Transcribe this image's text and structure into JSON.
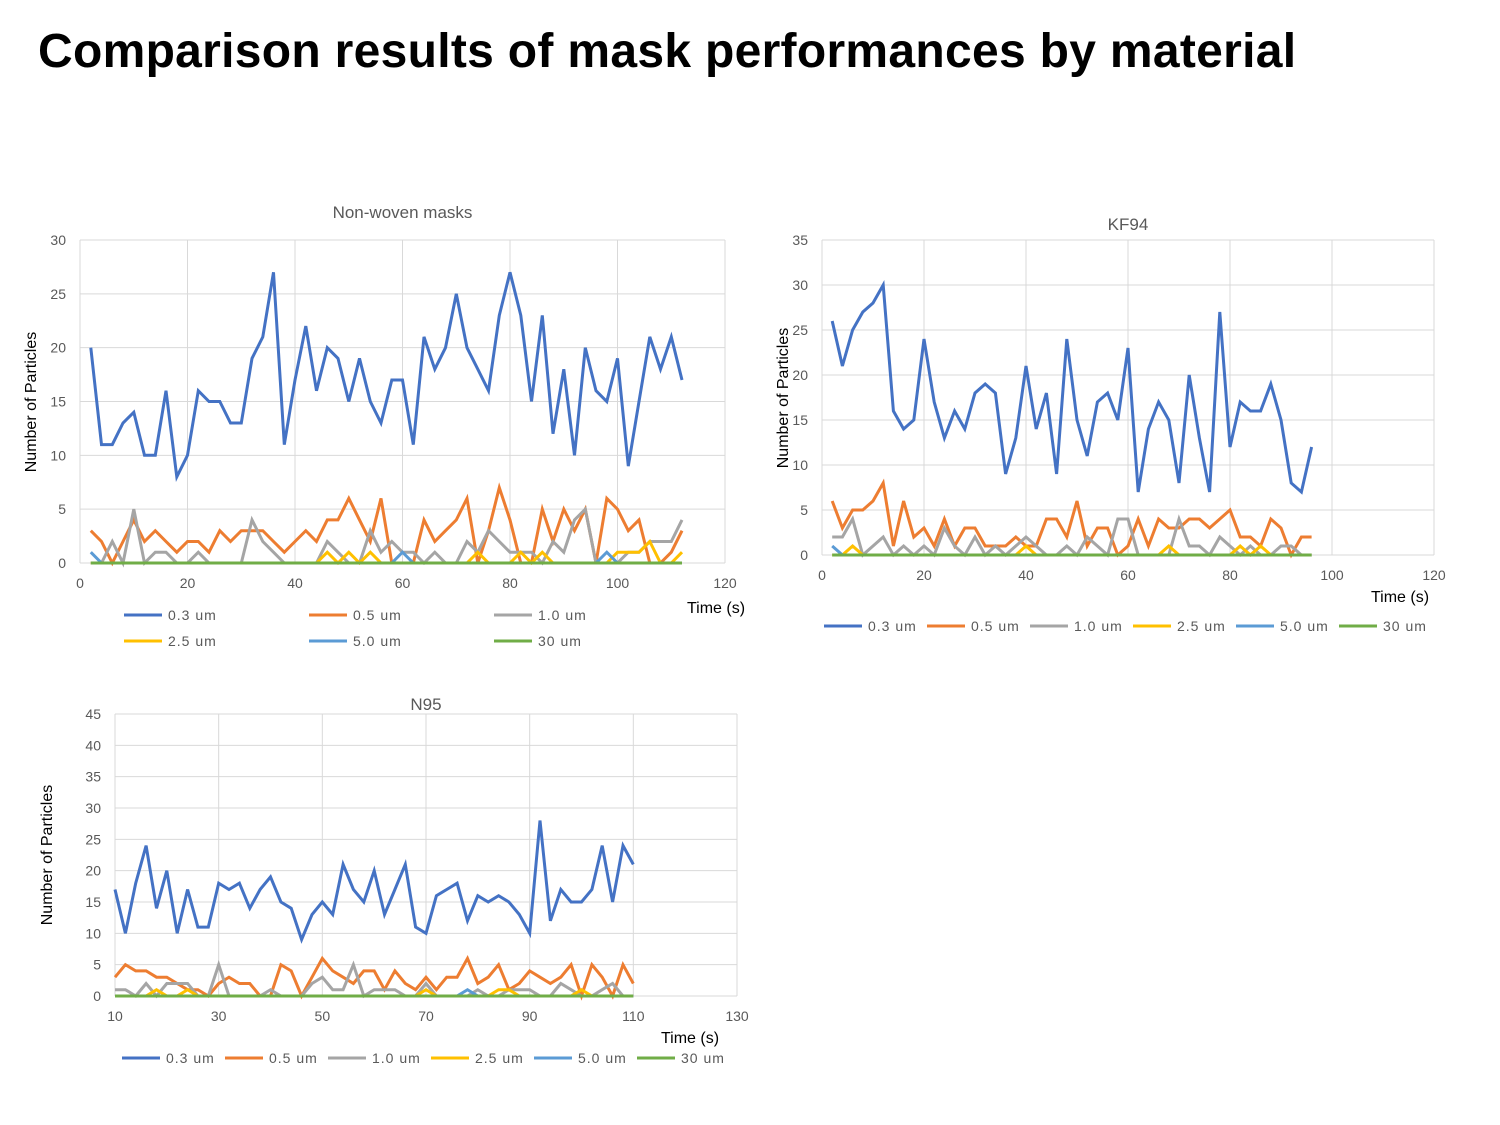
{
  "slide": {
    "title": "Comparison results of mask performances by material"
  },
  "colors": {
    "0.3 um": "#4472C4",
    "0.5 um": "#ED7D31",
    "1.0 um": "#A5A5A5",
    "2.5 um": "#FFC000",
    "5.0 um": "#5B9BD5",
    "30 um": "#70AD47"
  },
  "chart_data": [
    {
      "type": "line",
      "title": "Non-woven masks",
      "xlabel": "Time (s)",
      "ylabel": "Number of Particles",
      "xlim": [
        0,
        120
      ],
      "ylim": [
        0,
        30
      ],
      "xticks": [
        0,
        20,
        40,
        60,
        80,
        100,
        120
      ],
      "yticks": [
        0,
        5,
        10,
        15,
        20,
        25,
        30
      ],
      "grid": true,
      "legend": "bottom",
      "x": [
        2,
        4,
        6,
        8,
        10,
        12,
        14,
        16,
        18,
        20,
        22,
        24,
        26,
        28,
        30,
        32,
        34,
        36,
        38,
        40,
        42,
        44,
        46,
        48,
        50,
        52,
        54,
        56,
        58,
        60,
        62,
        64,
        66,
        68,
        70,
        72,
        74,
        76,
        78,
        80,
        82,
        84,
        86,
        88,
        90,
        92,
        94,
        96,
        98,
        100,
        102,
        104,
        106,
        108,
        110,
        112
      ],
      "series": [
        {
          "name": "0.3 um",
          "values": [
            20,
            11,
            11,
            13,
            14,
            10,
            10,
            16,
            8,
            10,
            16,
            15,
            15,
            13,
            13,
            19,
            21,
            27,
            11,
            17,
            22,
            16,
            20,
            19,
            15,
            19,
            15,
            13,
            17,
            17,
            11,
            21,
            18,
            20,
            25,
            20,
            18,
            16,
            23,
            27,
            23,
            15,
            23,
            12,
            18,
            10,
            20,
            16,
            15,
            19,
            9,
            15,
            21,
            18,
            21,
            17
          ]
        },
        {
          "name": "0.5 um",
          "values": [
            3,
            2,
            0,
            2,
            4,
            2,
            3,
            2,
            1,
            2,
            2,
            1,
            3,
            2,
            3,
            3,
            3,
            2,
            1,
            2,
            3,
            2,
            4,
            4,
            6,
            4,
            2,
            6,
            0,
            0,
            0,
            4,
            2,
            3,
            4,
            6,
            0,
            3,
            7,
            4,
            0,
            0,
            5,
            2,
            5,
            3,
            5,
            0,
            6,
            5,
            3,
            4,
            0,
            0,
            1,
            3
          ]
        },
        {
          "name": "1.0 um",
          "values": [
            0,
            0,
            2,
            0,
            5,
            0,
            1,
            1,
            0,
            0,
            1,
            0,
            0,
            0,
            0,
            4,
            2,
            1,
            0,
            0,
            0,
            0,
            2,
            1,
            0,
            0,
            3,
            1,
            2,
            1,
            1,
            0,
            1,
            0,
            0,
            2,
            1,
            3,
            2,
            1,
            1,
            1,
            0,
            2,
            1,
            4,
            5,
            0,
            0,
            0,
            1,
            1,
            2,
            2,
            2,
            4
          ]
        },
        {
          "name": "2.5 um",
          "values": [
            0,
            0,
            0,
            0,
            0,
            0,
            0,
            0,
            0,
            0,
            0,
            0,
            0,
            0,
            0,
            0,
            0,
            0,
            0,
            0,
            0,
            0,
            1,
            0,
            1,
            0,
            1,
            0,
            0,
            0,
            0,
            0,
            0,
            0,
            0,
            0,
            1,
            0,
            0,
            0,
            1,
            0,
            1,
            0,
            0,
            0,
            0,
            0,
            0,
            1,
            1,
            1,
            2,
            0,
            0,
            1
          ]
        },
        {
          "name": "5.0 um",
          "values": [
            1,
            0,
            0,
            0,
            0,
            0,
            0,
            0,
            0,
            0,
            0,
            0,
            0,
            0,
            0,
            0,
            0,
            0,
            0,
            0,
            0,
            0,
            0,
            0,
            0,
            0,
            0,
            0,
            0,
            1,
            0,
            0,
            0,
            0,
            0,
            0,
            0,
            0,
            0,
            0,
            0,
            0,
            0,
            0,
            0,
            0,
            0,
            0,
            1,
            0,
            0,
            0,
            0,
            0,
            0,
            0
          ]
        },
        {
          "name": "30 um",
          "values": [
            0,
            0,
            0,
            0,
            0,
            0,
            0,
            0,
            0,
            0,
            0,
            0,
            0,
            0,
            0,
            0,
            0,
            0,
            0,
            0,
            0,
            0,
            0,
            0,
            0,
            0,
            0,
            0,
            0,
            0,
            0,
            0,
            0,
            0,
            0,
            0,
            0,
            0,
            0,
            0,
            0,
            0,
            0,
            0,
            0,
            0,
            0,
            0,
            0,
            0,
            0,
            0,
            0,
            0,
            0,
            0
          ]
        }
      ]
    },
    {
      "type": "line",
      "title": "KF94",
      "xlabel": "Time (s)",
      "ylabel": "Number of Particles",
      "xlim": [
        0,
        120
      ],
      "ylim": [
        0,
        35
      ],
      "xticks": [
        0,
        20,
        40,
        60,
        80,
        100,
        120
      ],
      "yticks": [
        0,
        5,
        10,
        15,
        20,
        25,
        30,
        35
      ],
      "grid": true,
      "legend": "bottom",
      "x": [
        2,
        4,
        6,
        8,
        10,
        12,
        14,
        16,
        18,
        20,
        22,
        24,
        26,
        28,
        30,
        32,
        34,
        36,
        38,
        40,
        42,
        44,
        46,
        48,
        50,
        52,
        54,
        56,
        58,
        60,
        62,
        64,
        66,
        68,
        70,
        72,
        74,
        76,
        78,
        80,
        82,
        84,
        86,
        88,
        90,
        92,
        94,
        96
      ],
      "series": [
        {
          "name": "0.3 um",
          "values": [
            26,
            21,
            25,
            27,
            28,
            30,
            16,
            14,
            15,
            24,
            17,
            13,
            16,
            14,
            18,
            19,
            18,
            9,
            13,
            21,
            14,
            18,
            9,
            24,
            15,
            11,
            17,
            18,
            15,
            23,
            7,
            14,
            17,
            15,
            8,
            20,
            13,
            7,
            27,
            12,
            17,
            16,
            16,
            19,
            15,
            8,
            7,
            12
          ]
        },
        {
          "name": "0.5 um",
          "values": [
            6,
            3,
            5,
            5,
            6,
            8,
            1,
            6,
            2,
            3,
            1,
            4,
            1,
            3,
            3,
            1,
            1,
            1,
            2,
            1,
            1,
            4,
            4,
            2,
            6,
            1,
            3,
            3,
            0,
            1,
            4,
            1,
            4,
            3,
            3,
            4,
            4,
            3,
            4,
            5,
            2,
            2,
            1,
            4,
            3,
            0,
            2,
            2
          ]
        },
        {
          "name": "1.0 um",
          "values": [
            2,
            2,
            4,
            0,
            1,
            2,
            0,
            1,
            0,
            1,
            0,
            3,
            1,
            0,
            2,
            0,
            1,
            0,
            1,
            2,
            1,
            0,
            0,
            1,
            0,
            2,
            1,
            0,
            4,
            4,
            0,
            0,
            0,
            0,
            4,
            1,
            1,
            0,
            2,
            1,
            0,
            1,
            0,
            0,
            1,
            1,
            0,
            0
          ]
        },
        {
          "name": "2.5 um",
          "values": [
            0,
            0,
            1,
            0,
            0,
            0,
            0,
            0,
            0,
            0,
            0,
            0,
            0,
            0,
            0,
            0,
            0,
            0,
            0,
            1,
            0,
            0,
            0,
            0,
            0,
            0,
            0,
            0,
            0,
            0,
            0,
            0,
            0,
            1,
            0,
            0,
            0,
            0,
            0,
            0,
            1,
            0,
            1,
            0,
            0,
            0,
            0,
            0
          ]
        },
        {
          "name": "5.0 um",
          "values": [
            1,
            0,
            0,
            0,
            0,
            0,
            0,
            0,
            0,
            0,
            0,
            0,
            0,
            0,
            0,
            0,
            0,
            0,
            0,
            0,
            0,
            0,
            0,
            0,
            0,
            0,
            0,
            0,
            0,
            0,
            0,
            0,
            0,
            0,
            0,
            0,
            0,
            0,
            0,
            0,
            0,
            0,
            0,
            0,
            0,
            0,
            0,
            0
          ]
        },
        {
          "name": "30 um",
          "values": [
            0,
            0,
            0,
            0,
            0,
            0,
            0,
            0,
            0,
            0,
            0,
            0,
            0,
            0,
            0,
            0,
            0,
            0,
            0,
            0,
            0,
            0,
            0,
            0,
            0,
            0,
            0,
            0,
            0,
            0,
            0,
            0,
            0,
            0,
            0,
            0,
            0,
            0,
            0,
            0,
            0,
            0,
            0,
            0,
            0,
            0,
            0,
            0
          ]
        }
      ]
    },
    {
      "type": "line",
      "title": "N95",
      "xlabel": "Time (s)",
      "ylabel": "Number of Particles",
      "xlim": [
        10,
        130
      ],
      "ylim": [
        0,
        45
      ],
      "xticks": [
        10,
        30,
        50,
        70,
        90,
        110,
        130
      ],
      "yticks": [
        0,
        5,
        10,
        15,
        20,
        25,
        30,
        35,
        40,
        45
      ],
      "grid": true,
      "legend": "bottom",
      "x": [
        10,
        12,
        14,
        16,
        18,
        20,
        22,
        24,
        26,
        28,
        30,
        32,
        34,
        36,
        38,
        40,
        42,
        44,
        46,
        48,
        50,
        52,
        54,
        56,
        58,
        60,
        62,
        64,
        66,
        68,
        70,
        72,
        74,
        76,
        78,
        80,
        82,
        84,
        86,
        88,
        90,
        92,
        94,
        96,
        98,
        100,
        102,
        104,
        106,
        108,
        110
      ],
      "series": [
        {
          "name": "0.3 um",
          "values": [
            17,
            10,
            18,
            24,
            14,
            20,
            10,
            17,
            11,
            11,
            18,
            17,
            18,
            14,
            17,
            19,
            15,
            14,
            9,
            13,
            15,
            13,
            21,
            17,
            15,
            20,
            13,
            17,
            21,
            11,
            10,
            16,
            17,
            18,
            12,
            16,
            15,
            16,
            15,
            13,
            10,
            28,
            12,
            17,
            15,
            15,
            17,
            24,
            15,
            24,
            21
          ]
        },
        {
          "name": "0.5 um",
          "values": [
            3,
            5,
            4,
            4,
            3,
            3,
            2,
            1,
            1,
            0,
            2,
            3,
            2,
            2,
            0,
            0,
            5,
            4,
            0,
            3,
            6,
            4,
            3,
            2,
            4,
            4,
            1,
            4,
            2,
            1,
            3,
            1,
            3,
            3,
            6,
            2,
            3,
            5,
            1,
            2,
            4,
            3,
            2,
            3,
            5,
            0,
            5,
            3,
            0,
            5,
            2
          ]
        },
        {
          "name": "1.0 um",
          "values": [
            1,
            1,
            0,
            2,
            0,
            2,
            2,
            2,
            0,
            0,
            5,
            0,
            0,
            0,
            0,
            1,
            0,
            0,
            0,
            2,
            3,
            1,
            1,
            5,
            0,
            1,
            1,
            1,
            0,
            0,
            2,
            0,
            0,
            0,
            0,
            1,
            0,
            0,
            1,
            1,
            1,
            0,
            0,
            2,
            1,
            0,
            0,
            1,
            2,
            0,
            0
          ]
        },
        {
          "name": "2.5 um",
          "values": [
            0,
            0,
            0,
            0,
            1,
            0,
            0,
            1,
            0,
            0,
            0,
            0,
            0,
            0,
            0,
            0,
            0,
            0,
            0,
            0,
            0,
            0,
            0,
            0,
            0,
            0,
            0,
            0,
            0,
            0,
            1,
            0,
            0,
            0,
            0,
            0,
            0,
            1,
            1,
            0,
            0,
            0,
            0,
            0,
            0,
            1,
            0,
            0,
            0,
            0,
            0
          ]
        },
        {
          "name": "5.0 um",
          "values": [
            0,
            0,
            0,
            0,
            0,
            0,
            0,
            0,
            0,
            0,
            0,
            0,
            0,
            0,
            0,
            0,
            0,
            0,
            0,
            0,
            0,
            0,
            0,
            0,
            0,
            0,
            0,
            0,
            0,
            0,
            0,
            0,
            0,
            0,
            1,
            0,
            0,
            0,
            0,
            0,
            0,
            0,
            0,
            0,
            0,
            0,
            0,
            0,
            0,
            0,
            0
          ]
        },
        {
          "name": "30 um",
          "values": [
            0,
            0,
            0,
            0,
            0,
            0,
            0,
            0,
            0,
            0,
            0,
            0,
            0,
            0,
            0,
            0,
            0,
            0,
            0,
            0,
            0,
            0,
            0,
            0,
            0,
            0,
            0,
            0,
            0,
            0,
            0,
            0,
            0,
            0,
            0,
            0,
            0,
            0,
            0,
            0,
            0,
            0,
            0,
            0,
            0,
            0,
            0,
            0,
            0,
            0,
            0
          ]
        }
      ]
    }
  ]
}
